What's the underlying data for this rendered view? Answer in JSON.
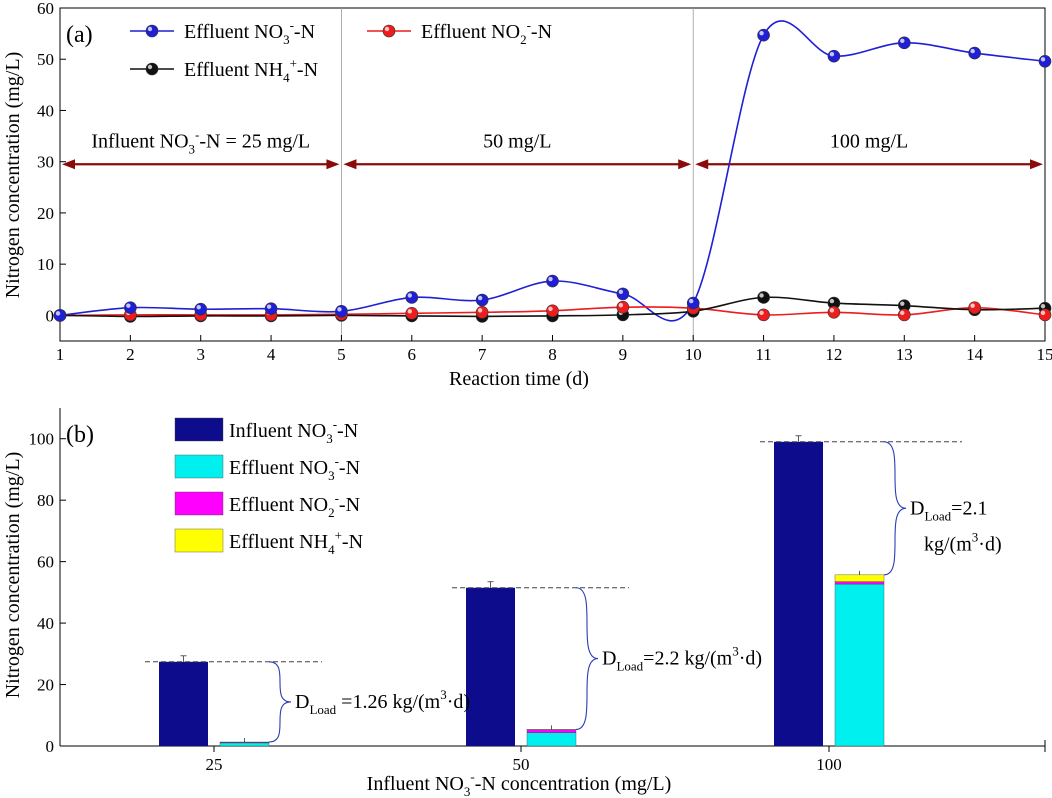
{
  "chart_data": [
    {
      "type": "line",
      "panel": "(a)",
      "xlabel": "Reaction time (d)",
      "ylabel": "Nitrogen concentration (mg/L)",
      "xlim": [
        1,
        15
      ],
      "ylim": [
        -5,
        60
      ],
      "xticks": [
        1,
        2,
        3,
        4,
        5,
        6,
        7,
        8,
        9,
        10,
        11,
        12,
        13,
        14,
        15
      ],
      "yticks": [
        0,
        10,
        20,
        30,
        40,
        50,
        60
      ],
      "x": [
        1,
        2,
        3,
        4,
        5,
        6,
        7,
        8,
        9,
        10,
        11,
        12,
        13,
        14,
        15
      ],
      "series": [
        {
          "name": "Effluent NO3-N",
          "label_base": "Effluent NO",
          "sub": "3",
          "sup": "-",
          "suffix": "-N",
          "color": "#1f1fd6",
          "values": [
            0,
            1.5,
            1.2,
            1.3,
            0.8,
            3.5,
            3.0,
            6.7,
            4.2,
            2.4,
            54.7,
            50.6,
            53.2,
            51.2,
            49.6
          ]
        },
        {
          "name": "Effluent NO2-N",
          "label_base": "Effluent NO",
          "sub": "2",
          "sup": "-",
          "suffix": "-N",
          "color": "#ee1c1c",
          "values": [
            0,
            0.1,
            0.1,
            0.1,
            0.2,
            0.4,
            0.6,
            0.9,
            1.6,
            1.4,
            0.1,
            0.6,
            0.1,
            1.5,
            0.1
          ]
        },
        {
          "name": "Effluent NH4-N",
          "label_base": "Effluent NH",
          "sub": "4",
          "sup": "+",
          "suffix": "-N",
          "color": "#111111",
          "values": [
            0,
            -0.2,
            -0.1,
            -0.1,
            0,
            -0.1,
            -0.2,
            -0.1,
            0.1,
            0.8,
            3.5,
            2.4,
            1.9,
            1.1,
            1.4
          ]
        }
      ],
      "phases": [
        {
          "x_start": 1,
          "x_end": 5,
          "label": "Influent NO3-N = 25 mg/L",
          "label_base": "Influent NO",
          "sub": "3",
          "sup": "-",
          "suffix": "-N = 25 mg/L"
        },
        {
          "x_start": 5,
          "x_end": 10,
          "label": "50 mg/L"
        },
        {
          "x_start": 10,
          "x_end": 15,
          "label": "100 mg/L"
        }
      ],
      "phase_arrow_y": 29.5,
      "phase_dividers_x": [
        5,
        10
      ]
    },
    {
      "type": "bar",
      "panel": "(b)",
      "xlabel": "Influent NO3-N concentration (mg/L)",
      "xlabel_parts": {
        "base": "Influent NO",
        "sub": "3",
        "sup": "-",
        "suffix": "-N concentration (mg/L)"
      },
      "ylabel": "Nitrogen concentration (mg/L)",
      "ylim": [
        0,
        110
      ],
      "yticks": [
        0,
        20,
        40,
        60,
        80,
        100
      ],
      "categories": [
        "25",
        "50",
        "100"
      ],
      "influent": {
        "name": "Influent NO3-N",
        "color": "#0c0c8c",
        "values": [
          27.4,
          51.5,
          99.0
        ]
      },
      "effluent_stack": [
        {
          "name": "Effluent NO3-N",
          "color": "#00f0f0",
          "values": [
            1.0,
            4.3,
            52.7
          ]
        },
        {
          "name": "Effluent NO2-N",
          "color": "#ff00ff",
          "values": [
            0.2,
            1.0,
            0.8
          ]
        },
        {
          "name": "Effluent NH4-N",
          "color": "#ffff00",
          "values": [
            0.1,
            0.1,
            2.2
          ]
        }
      ],
      "legend": [
        {
          "base": "Influent NO",
          "sub": "3",
          "sup": "-",
          "suffix": "-N",
          "color": "#0c0c8c"
        },
        {
          "base": "Effluent NO",
          "sub": "3",
          "sup": "-",
          "suffix": "-N",
          "color": "#00f0f0"
        },
        {
          "base": "Effluent NO",
          "sub": "2",
          "sup": "-",
          "suffix": "-N",
          "color": "#ff00ff"
        },
        {
          "base": "Effluent NH",
          "sub": "4",
          "sup": "+",
          "suffix": "-N",
          "color": "#ffff00"
        }
      ],
      "annotations": [
        {
          "text": "DLoad =1.26 kg/(m3·d)",
          "value": "1.26"
        },
        {
          "text": "DLoad=2.2 kg/(m3·d)",
          "value": "2.2"
        },
        {
          "text": "DLoad=2.1 kg/(m3·d)",
          "value": "2.1"
        }
      ]
    }
  ]
}
